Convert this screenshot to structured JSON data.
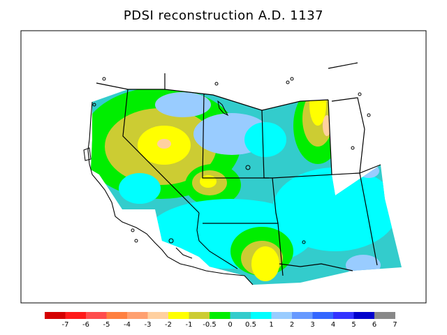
{
  "title": "PDSI reconstruction A.D. 1137",
  "legend": {
    "colors": [
      "#d40000",
      "#ff1a1a",
      "#ff4d4d",
      "#ff8040",
      "#ffa070",
      "#ffd0a0",
      "#ffff00",
      "#cccc33",
      "#00ee00",
      "#33cccc",
      "#00ffff",
      "#99ccff",
      "#6699ff",
      "#3366ff",
      "#3333ff",
      "#0000cc",
      "#888888"
    ],
    "tick_labels": [
      "-7",
      "-6",
      "-5",
      "-4",
      "-3",
      "-2",
      "-1",
      "-0.5",
      "0",
      "0.5",
      "1",
      "2",
      "3",
      "4",
      "5",
      "6",
      "7"
    ]
  }
}
